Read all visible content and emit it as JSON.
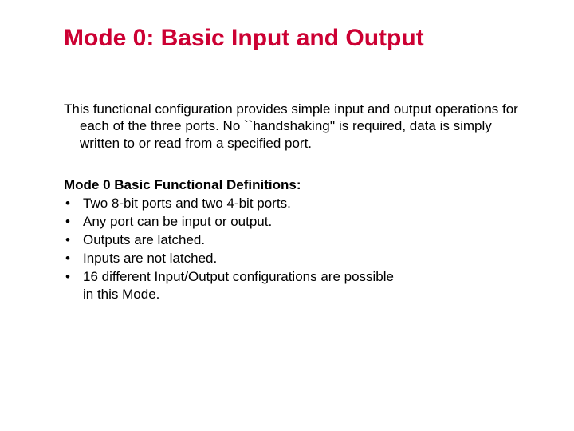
{
  "title_color": "#cc0033",
  "title": "Mode 0: Basic Input and Output",
  "intro": "This functional configuration provides simple input and output operations for each of the three ports. No ``handshaking'' is required, data is simply written to or read from a specified port.",
  "subheading": "Mode 0 Basic Functional Definitions:",
  "bullets": [
    "Two 8-bit ports and two 4-bit ports.",
    "Any port can be input or output.",
    "Outputs are latched.",
    "Inputs are not latched.",
    "16 different Input/Output configurations are possible"
  ],
  "trailing_line": "in this Mode.",
  "body_fontsize": 17,
  "title_fontsize": 30,
  "background_color": "#ffffff",
  "text_color": "#000000"
}
